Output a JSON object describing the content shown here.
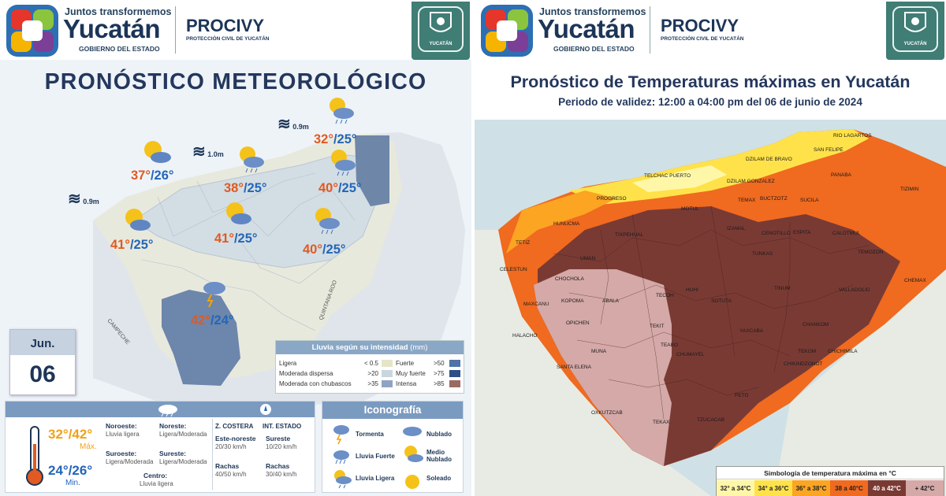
{
  "left": {
    "brand_top": "Juntos transformemos",
    "brand_name": "Yucatán",
    "brand_sub": "GOBIERNO DEL ESTADO",
    "agency": "PROCIVY",
    "agency_sub": "PROTECCIÓN CIVIL DE YUCATÁN",
    "seal_text": "YUCATÁN",
    "title": "PRONÓSTICO METEOROLÓGICO",
    "waves": [
      "0.9m",
      "1.0m",
      "0.9m"
    ],
    "regions": [
      "CAMPECHE",
      "QUINTANA ROO"
    ],
    "forecasts": [
      {
        "max": "37°",
        "min": "/26°",
        "icon": "partly-cloudy-icon"
      },
      {
        "max": "38°",
        "min": "/25°",
        "icon": "sun-rain-icon"
      },
      {
        "max": "32°",
        "min": "/25°",
        "icon": "sun-rain-icon"
      },
      {
        "max": "40°",
        "min": "/25°",
        "icon": "sun-rain-icon"
      },
      {
        "max": "41°",
        "min": "/25°",
        "icon": "partly-cloudy-icon"
      },
      {
        "max": "41°",
        "min": "/25°",
        "icon": "partly-cloudy-icon"
      },
      {
        "max": "40°",
        "min": "/25°",
        "icon": "sun-rain-icon"
      },
      {
        "max": "42°",
        "min": "/24°",
        "icon": "storm-icon"
      }
    ],
    "date": {
      "month": "Jun.",
      "day": "06"
    },
    "rain_legend": {
      "title": "Lluvia según su intensidad",
      "unit": "(mm)",
      "rows": [
        {
          "label": "Ligera",
          "value": "< 0.5"
        },
        {
          "label": "Moderada dispersa",
          "value": ">20"
        },
        {
          "label": "Moderada con chubascos",
          "value": ">35"
        }
      ],
      "rows2": [
        {
          "label": "Fuerte",
          "value": ">50",
          "color": "#4f73a8"
        },
        {
          "label": "Muy fuerte",
          "value": ">75",
          "color": "#2d4f86"
        },
        {
          "label": "Intensa",
          "value": ">85",
          "color": "#9a6b62"
        }
      ],
      "colors": [
        "#e5e5c9",
        "#c9d6df",
        "#8fa4c4"
      ]
    },
    "temps": {
      "max": "32°/42°",
      "max_label": "Máx.",
      "min": "24°/26°",
      "min_label": "Min."
    },
    "winds": [
      {
        "dir": "Noroeste:",
        "val": "Lluvia ligera"
      },
      {
        "dir": "Noreste:",
        "val": "Ligera/Moderada"
      },
      {
        "dir": "Suroeste:",
        "val": "Ligera/Moderada"
      },
      {
        "dir": "Sureste:",
        "val": "Ligera/Moderada"
      },
      {
        "dir": "Centro:",
        "val": "Lluvia ligera"
      }
    ],
    "coast": {
      "z_costera": "Z. COSTERA",
      "int_estado": "INT. ESTADO",
      "zc_dir": "Este-noreste",
      "zc_speed": "20/30 km/h",
      "ie_dir": "Sureste",
      "ie_speed": "10/20 km/h",
      "gust_label": "Rachas",
      "zc_gust": "40/50 km/h",
      "ie_gust": "30/40 km/h"
    },
    "iconography": {
      "title": "Iconografía",
      "items": [
        "Tormenta",
        "Nublado",
        "Lluvia Fuerte",
        "Medio Nublado",
        "Lluvia Ligera",
        "Soleado"
      ]
    }
  },
  "right": {
    "title": "Pronóstico de Temperaturas máximas en Yucatán",
    "subtitle": "Periodo de validez: 12:00 a 04:00 pm del 06 de junio de 2024",
    "municipalities": [
      "RIO LAGARTOS",
      "SAN FELIPE",
      "TELCHAC PUERTO",
      "DZILAM DE BRAVO",
      "PANABA",
      "TIZIMIN",
      "PROGRESO",
      "DZILAM GONZALEZ",
      "BUCTZOTZ",
      "SUCILA",
      "HUNUCMA",
      "TEMAX",
      "ESPITA",
      "CALOTMUL",
      "TETIZ",
      "IZAMAL",
      "CENOTILLO",
      "TEMOZON",
      "CELESTUN",
      "TUNKAS",
      "CHEMAX",
      "CHOCHOLA",
      "TINUM",
      "VALLADOLID",
      "MAXCANU",
      "KOPOMA",
      "ABALA",
      "TECOH",
      "HUHI",
      "SOTUTA",
      "HALACHO",
      "OPICHEN",
      "TEKIT",
      "YAXCABA",
      "CHANKOM",
      "MUNA",
      "TEABO",
      "TEKOM",
      "CHICHIMILA",
      "SANTA ELENA",
      "CHUMAYEL",
      "CHIKINDZONOT",
      "OXKUTZCAB",
      "PETO",
      "TEKAX",
      "TZUCACAB",
      "UMAN",
      "MOTUL",
      "TIXPEHUAL"
    ],
    "legend": {
      "title": "Simbología de temperatura máxima en °C",
      "items": [
        {
          "label": "32° a 34°C",
          "color": "#fff7a8"
        },
        {
          "label": "34° a 36°C",
          "color": "#ffe24a"
        },
        {
          "label": "36° a 38°C",
          "color": "#fba522"
        },
        {
          "label": "38 a 40°C",
          "color": "#f06a1f"
        },
        {
          "label": "40 a 42°C",
          "color": "#7a3a34"
        },
        {
          "label": "+ 42°C",
          "color": "#d4a9a7"
        }
      ]
    }
  }
}
